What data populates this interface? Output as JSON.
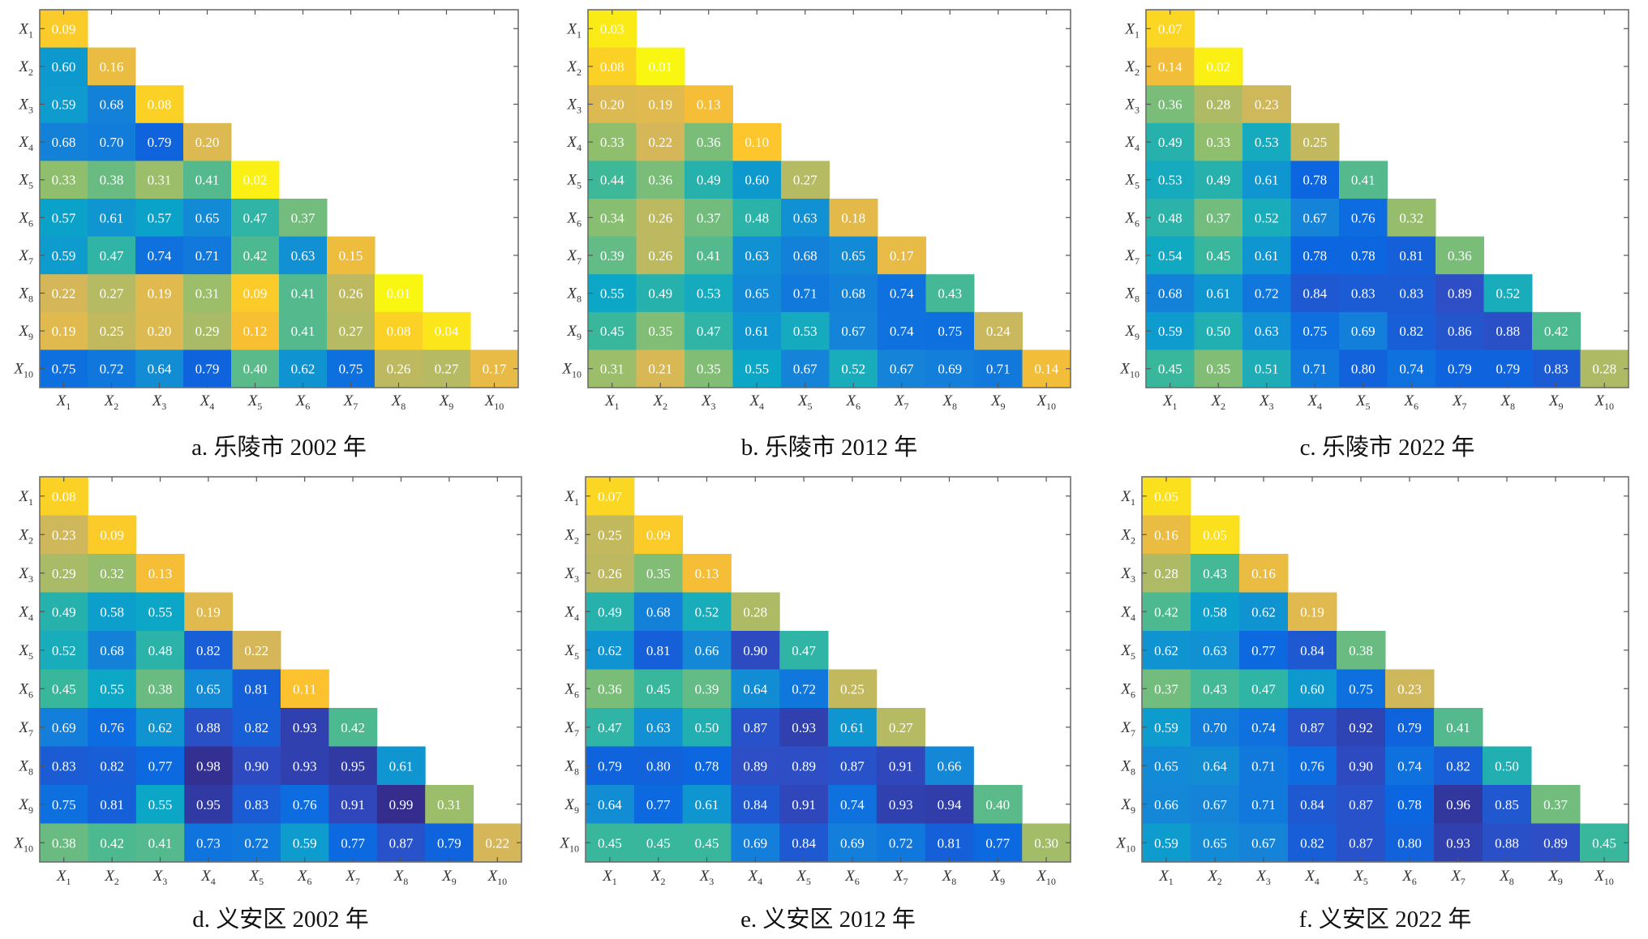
{
  "figure": {
    "colormap": "parula-reversed",
    "colormap_stops": [
      "#f9fb0e",
      "#fcc02f",
      "#d4b75a",
      "#8dbe6e",
      "#3ab89b",
      "#0aa6c8",
      "#1585d8",
      "#0b67e0",
      "#2d4ec6",
      "#352a87"
    ]
  },
  "chart_data": [
    {
      "type": "heatmap",
      "id": "a",
      "title": "a. 乐陵市 2002 年",
      "row_labels": [
        "X1",
        "X2",
        "X3",
        "X4",
        "X5",
        "X6",
        "X7",
        "X8",
        "X9",
        "X10"
      ],
      "col_labels": [
        "X1",
        "X2",
        "X3",
        "X4",
        "X5",
        "X6",
        "X7",
        "X8",
        "X9",
        "X10"
      ],
      "value_range": [
        0,
        1
      ],
      "triangle": "lower",
      "values": [
        [
          0.09
        ],
        [
          0.6,
          0.16
        ],
        [
          0.59,
          0.68,
          0.08
        ],
        [
          0.68,
          0.7,
          0.79,
          0.2
        ],
        [
          0.33,
          0.38,
          0.31,
          0.41,
          0.02
        ],
        [
          0.57,
          0.61,
          0.57,
          0.65,
          0.47,
          0.37
        ],
        [
          0.59,
          0.47,
          0.74,
          0.71,
          0.42,
          0.63,
          0.15
        ],
        [
          0.22,
          0.27,
          0.19,
          0.31,
          0.09,
          0.41,
          0.26,
          0.01
        ],
        [
          0.19,
          0.25,
          0.2,
          0.29,
          0.12,
          0.41,
          0.27,
          0.08,
          0.04
        ],
        [
          0.75,
          0.72,
          0.64,
          0.79,
          0.4,
          0.62,
          0.75,
          0.26,
          0.27,
          0.17
        ]
      ]
    },
    {
      "type": "heatmap",
      "id": "b",
      "title": "b. 乐陵市 2012 年",
      "row_labels": [
        "X1",
        "X2",
        "X3",
        "X4",
        "X5",
        "X6",
        "X7",
        "X8",
        "X9",
        "X10"
      ],
      "col_labels": [
        "X1",
        "X2",
        "X3",
        "X4",
        "X5",
        "X6",
        "X7",
        "X8",
        "X9",
        "X10"
      ],
      "value_range": [
        0,
        1
      ],
      "triangle": "lower",
      "values": [
        [
          0.03
        ],
        [
          0.08,
          0.01
        ],
        [
          0.2,
          0.19,
          0.13
        ],
        [
          0.33,
          0.22,
          0.36,
          0.1
        ],
        [
          0.44,
          0.36,
          0.49,
          0.6,
          0.27
        ],
        [
          0.34,
          0.26,
          0.37,
          0.48,
          0.63,
          0.18
        ],
        [
          0.39,
          0.26,
          0.41,
          0.63,
          0.68,
          0.65,
          0.17
        ],
        [
          0.55,
          0.49,
          0.53,
          0.65,
          0.71,
          0.68,
          0.74,
          0.43
        ],
        [
          0.45,
          0.35,
          0.47,
          0.61,
          0.53,
          0.67,
          0.74,
          0.75,
          0.24
        ],
        [
          0.31,
          0.21,
          0.35,
          0.55,
          0.67,
          0.52,
          0.67,
          0.69,
          0.71,
          0.14
        ]
      ]
    },
    {
      "type": "heatmap",
      "id": "c",
      "title": "c. 乐陵市 2022 年",
      "row_labels": [
        "X1",
        "X2",
        "X3",
        "X4",
        "X5",
        "X6",
        "X7",
        "X8",
        "X9",
        "X10"
      ],
      "col_labels": [
        "X1",
        "X2",
        "X3",
        "X4",
        "X5",
        "X6",
        "X7",
        "X8",
        "X9",
        "X10"
      ],
      "value_range": [
        0,
        1
      ],
      "triangle": "lower",
      "values": [
        [
          0.07
        ],
        [
          0.14,
          0.02
        ],
        [
          0.36,
          0.28,
          0.23
        ],
        [
          0.49,
          0.33,
          0.53,
          0.25
        ],
        [
          0.53,
          0.49,
          0.61,
          0.78,
          0.41
        ],
        [
          0.48,
          0.37,
          0.52,
          0.67,
          0.76,
          0.32
        ],
        [
          0.54,
          0.45,
          0.61,
          0.78,
          0.78,
          0.81,
          0.36
        ],
        [
          0.68,
          0.61,
          0.72,
          0.84,
          0.83,
          0.83,
          0.89,
          0.52
        ],
        [
          0.59,
          0.5,
          0.63,
          0.75,
          0.69,
          0.82,
          0.86,
          0.88,
          0.42
        ],
        [
          0.45,
          0.35,
          0.51,
          0.71,
          0.8,
          0.74,
          0.79,
          0.79,
          0.83,
          0.28
        ]
      ]
    },
    {
      "type": "heatmap",
      "id": "d",
      "title": "d. 义安区 2002 年",
      "row_labels": [
        "X1",
        "X2",
        "X3",
        "X4",
        "X5",
        "X6",
        "X7",
        "X8",
        "X9",
        "X10"
      ],
      "col_labels": [
        "X1",
        "X2",
        "X3",
        "X4",
        "X5",
        "X6",
        "X7",
        "X8",
        "X9",
        "X10"
      ],
      "value_range": [
        0,
        1
      ],
      "triangle": "lower",
      "values": [
        [
          0.08
        ],
        [
          0.23,
          0.09
        ],
        [
          0.29,
          0.32,
          0.13
        ],
        [
          0.49,
          0.58,
          0.55,
          0.19
        ],
        [
          0.52,
          0.68,
          0.48,
          0.82,
          0.22
        ],
        [
          0.45,
          0.55,
          0.38,
          0.65,
          0.81,
          0.11
        ],
        [
          0.69,
          0.76,
          0.62,
          0.88,
          0.82,
          0.93,
          0.42
        ],
        [
          0.83,
          0.82,
          0.77,
          0.98,
          0.9,
          0.93,
          0.95,
          0.61
        ],
        [
          0.75,
          0.81,
          0.55,
          0.95,
          0.83,
          0.76,
          0.91,
          0.99,
          0.31
        ],
        [
          0.38,
          0.42,
          0.41,
          0.73,
          0.72,
          0.59,
          0.77,
          0.87,
          0.79,
          0.22
        ]
      ]
    },
    {
      "type": "heatmap",
      "id": "e",
      "title": "e. 义安区 2012 年",
      "row_labels": [
        "X1",
        "X2",
        "X3",
        "X4",
        "X5",
        "X6",
        "X7",
        "X8",
        "X9",
        "X10"
      ],
      "col_labels": [
        "X1",
        "X2",
        "X3",
        "X4",
        "X5",
        "X6",
        "X7",
        "X8",
        "X9",
        "X10"
      ],
      "value_range": [
        0,
        1
      ],
      "triangle": "lower",
      "values": [
        [
          0.07
        ],
        [
          0.25,
          0.09
        ],
        [
          0.26,
          0.35,
          0.13
        ],
        [
          0.49,
          0.68,
          0.52,
          0.28
        ],
        [
          0.62,
          0.81,
          0.66,
          0.9,
          0.47
        ],
        [
          0.36,
          0.45,
          0.39,
          0.64,
          0.72,
          0.25
        ],
        [
          0.47,
          0.63,
          0.5,
          0.87,
          0.93,
          0.61,
          0.27
        ],
        [
          0.79,
          0.8,
          0.78,
          0.89,
          0.89,
          0.87,
          0.91,
          0.66
        ],
        [
          0.64,
          0.77,
          0.61,
          0.84,
          0.91,
          0.74,
          0.93,
          0.94,
          0.4
        ],
        [
          0.45,
          0.45,
          0.45,
          0.69,
          0.84,
          0.69,
          0.72,
          0.81,
          0.77,
          0.3
        ]
      ]
    },
    {
      "type": "heatmap",
      "id": "f",
      "title": "f. 义安区 2022 年",
      "row_labels": [
        "X1",
        "X2",
        "X3",
        "X4",
        "X5",
        "X6",
        "X7",
        "X8",
        "X9",
        "X10"
      ],
      "col_labels": [
        "X1",
        "X2",
        "X3",
        "X4",
        "X5",
        "X6",
        "X7",
        "X8",
        "X9",
        "X10"
      ],
      "value_range": [
        0,
        1
      ],
      "triangle": "lower",
      "values": [
        [
          0.05
        ],
        [
          0.16,
          0.05
        ],
        [
          0.28,
          0.43,
          0.16
        ],
        [
          0.42,
          0.58,
          0.62,
          0.19
        ],
        [
          0.62,
          0.63,
          0.77,
          0.84,
          0.38
        ],
        [
          0.37,
          0.43,
          0.47,
          0.6,
          0.75,
          0.23
        ],
        [
          0.59,
          0.7,
          0.74,
          0.87,
          0.92,
          0.79,
          0.41
        ],
        [
          0.65,
          0.64,
          0.71,
          0.76,
          0.9,
          0.74,
          0.82,
          0.5
        ],
        [
          0.66,
          0.67,
          0.71,
          0.84,
          0.87,
          0.78,
          0.96,
          0.85,
          0.37
        ],
        [
          0.59,
          0.65,
          0.67,
          0.82,
          0.87,
          0.8,
          0.93,
          0.88,
          0.89,
          0.45
        ]
      ]
    }
  ]
}
